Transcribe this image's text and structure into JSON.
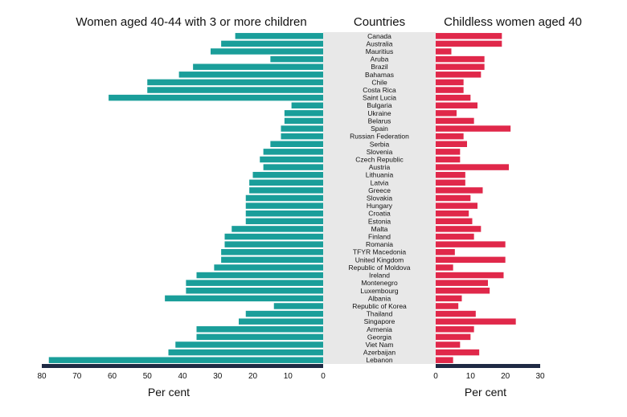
{
  "chart_data": {
    "type": "bar",
    "categories": [
      "Canada",
      "Australia",
      "Mauritius",
      "Aruba",
      "Brazil",
      "Bahamas",
      "Chile",
      "Costa Rica",
      "Saint Lucia",
      "Bulgaria",
      "Ukraine",
      "Belarus",
      "Spain",
      "Russian Federation",
      "Serbia",
      "Slovenia",
      "Czech Republic",
      "Austria",
      "Lithuania",
      "Latvia",
      "Greece",
      "Slovakia",
      "Hungary",
      "Croatia",
      "Estonia",
      "Malta",
      "Finland",
      "Romania",
      "TFYR Macedonia",
      "United Kingdom",
      "Republic of Moldova",
      "Ireland",
      "Montenegro",
      "Luxembourg",
      "Albania",
      "Republic of Korea",
      "Thailand",
      "Singapore",
      "Armenia",
      "Georgia",
      "Viet Nam",
      "Azerbaijan",
      "Lebanon"
    ],
    "series": [
      {
        "name": "Women aged 40-44 with 3 or more children",
        "color": "#1a9e9a",
        "values": [
          25,
          29,
          32,
          15,
          37,
          41,
          50,
          50,
          61,
          9,
          11,
          11,
          12,
          12,
          15,
          17,
          18,
          17,
          20,
          21,
          21,
          22,
          22,
          22,
          22,
          26,
          28,
          28,
          29,
          29,
          31,
          36,
          39,
          39,
          45,
          14,
          22,
          24,
          36,
          36,
          42,
          44,
          78
        ]
      },
      {
        "name": "Childless women aged 40",
        "color": "#e0284a",
        "values": [
          19,
          19,
          4.5,
          14,
          14,
          13,
          8,
          8,
          10,
          12,
          6,
          11,
          21.5,
          8,
          9,
          7,
          7,
          21,
          8.5,
          8.5,
          13.5,
          10,
          12,
          9.5,
          10.5,
          13,
          11,
          20,
          5.5,
          20,
          5,
          19.5,
          15,
          15.5,
          7.5,
          6.5,
          11.5,
          23,
          11,
          10,
          7,
          12.5,
          5
        ]
      }
    ],
    "titles": {
      "left": "Women aged 40-44 with 3 or more children",
      "center": "Countries",
      "right": "Childless women aged 40"
    },
    "left_axis": {
      "range": [
        0,
        80
      ],
      "ticks": [
        "80",
        "70",
        "60",
        "50",
        "40",
        "30",
        "20",
        "10",
        "0"
      ],
      "label": "Per cent"
    },
    "right_axis": {
      "range": [
        0,
        30
      ],
      "ticks": [
        "0",
        "10",
        "20",
        "30"
      ],
      "label": "Per cent"
    },
    "colors": {
      "axis": "#1f2a44",
      "center_band": "#e8e8e8"
    }
  }
}
